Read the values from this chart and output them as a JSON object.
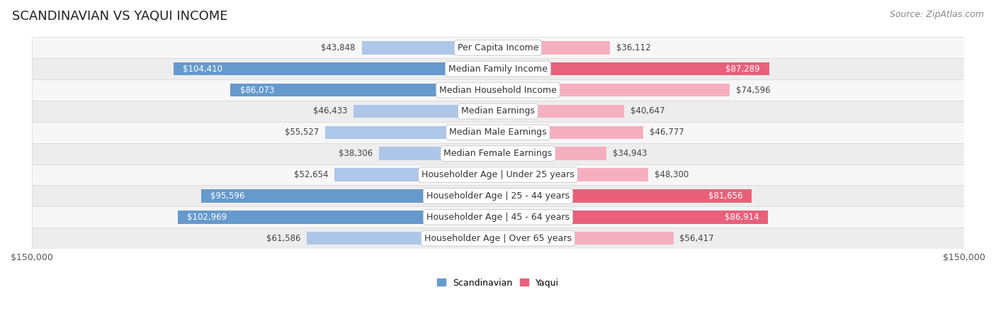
{
  "title": "SCANDINAVIAN VS YAQUI INCOME",
  "source": "Source: ZipAtlas.com",
  "max_value": 150000,
  "categories": [
    "Per Capita Income",
    "Median Family Income",
    "Median Household Income",
    "Median Earnings",
    "Median Male Earnings",
    "Median Female Earnings",
    "Householder Age | Under 25 years",
    "Householder Age | 25 - 44 years",
    "Householder Age | 45 - 64 years",
    "Householder Age | Over 65 years"
  ],
  "scandinavian_values": [
    43848,
    104410,
    86073,
    46433,
    55527,
    38306,
    52654,
    95596,
    102969,
    61586
  ],
  "yaqui_values": [
    36112,
    87289,
    74596,
    40647,
    46777,
    34943,
    48300,
    81656,
    86914,
    56417
  ],
  "scandinavian_color_light": "#aec6e8",
  "scandinavian_color_dark": "#6699cc",
  "yaqui_color_light": "#f5b0c0",
  "yaqui_color_dark": "#e8607a",
  "row_bg_odd": "#f7f7f7",
  "row_bg_even": "#ededee",
  "row_border": "#d8d8d8",
  "bg_color": "#ffffff",
  "title_fontsize": 13,
  "source_fontsize": 9,
  "value_fontsize": 8.5,
  "category_fontsize": 9,
  "legend_fontsize": 9,
  "axis_label_fontsize": 9,
  "white_text_threshold": 75000,
  "bar_height": 0.62
}
